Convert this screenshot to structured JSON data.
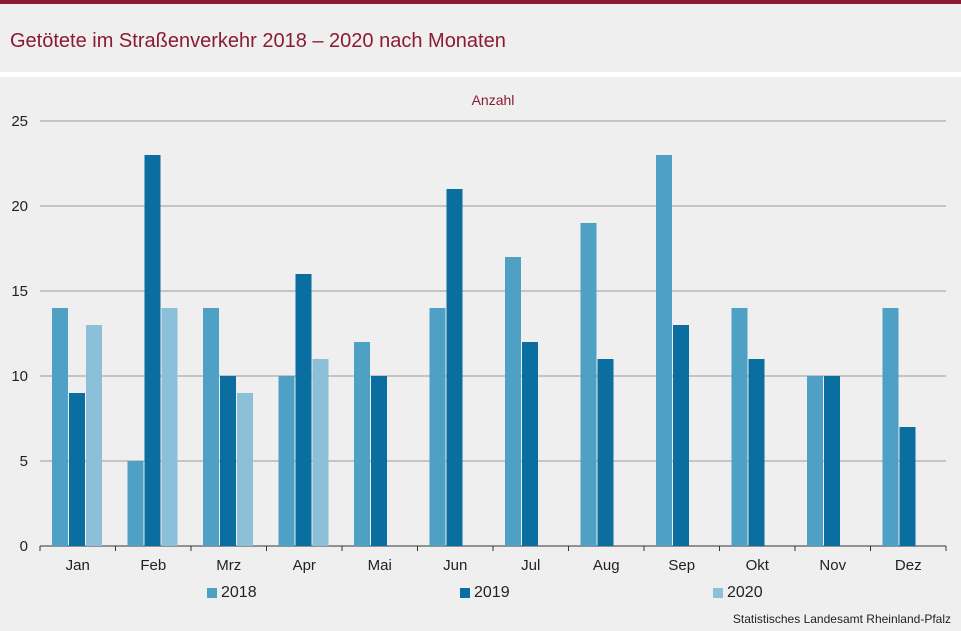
{
  "header": {
    "title": "Getötete im Straßenverkehr 2018 – 2020 nach Monaten"
  },
  "chart_data": {
    "type": "bar",
    "ylabel": "Anzahl",
    "ylim": [
      0,
      25
    ],
    "yticks": [
      0,
      5,
      10,
      15,
      20,
      25
    ],
    "grid": true,
    "legend_position": "bottom",
    "categories": [
      "Jan",
      "Feb",
      "Mrz",
      "Apr",
      "Mai",
      "Jun",
      "Jul",
      "Aug",
      "Sep",
      "Okt",
      "Nov",
      "Dez"
    ],
    "series": [
      {
        "name": "2018",
        "color": "#4ea1c4",
        "values": [
          14,
          5,
          14,
          10,
          12,
          14,
          17,
          19,
          23,
          14,
          10,
          14
        ]
      },
      {
        "name": "2019",
        "color": "#0b6ea0",
        "values": [
          9,
          23,
          10,
          16,
          10,
          21,
          12,
          11,
          13,
          11,
          10,
          7
        ]
      },
      {
        "name": "2020",
        "color": "#8cbfd8",
        "values": [
          13,
          14,
          9,
          11,
          null,
          null,
          null,
          null,
          null,
          null,
          null,
          null
        ]
      }
    ]
  },
  "footer": {
    "source": "Statistisches Landesamt Rheinland-Pfalz"
  }
}
